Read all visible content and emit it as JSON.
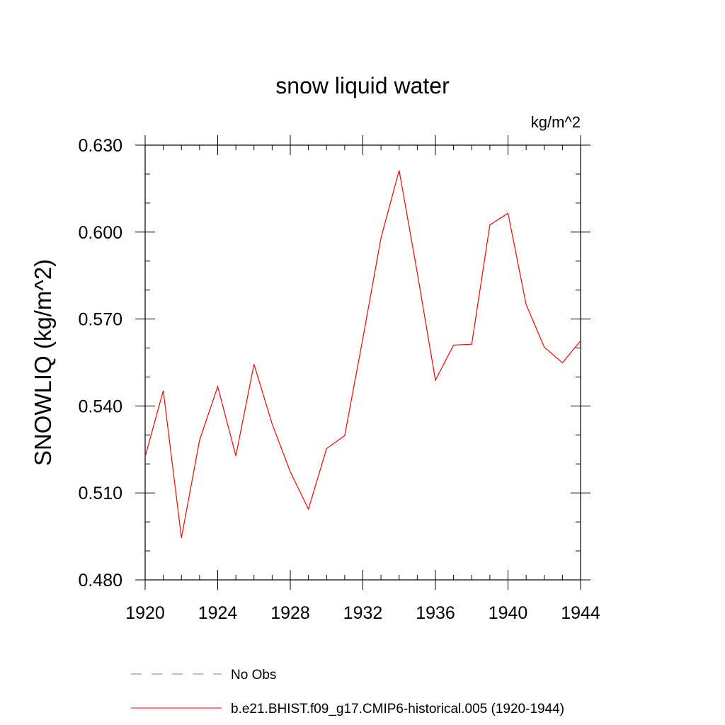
{
  "chart_data": {
    "type": "line",
    "title": "snow liquid water",
    "units_label": "kg/m^2",
    "xlabel": "",
    "ylabel": "SNOWLIQ  (kg/m^2)",
    "xlim": [
      1920,
      1944
    ],
    "ylim": [
      0.48,
      0.63
    ],
    "x_ticks": [
      "1920",
      "1924",
      "1928",
      "1932",
      "1936",
      "1940",
      "1944"
    ],
    "y_ticks": [
      "0.480",
      "0.510",
      "0.540",
      "0.570",
      "0.600",
      "0.630"
    ],
    "grid": false,
    "legend_position": "bottom",
    "series": [
      {
        "name": "No Obs",
        "color": "#7777cc",
        "style": "dashed",
        "x": [],
        "y": []
      },
      {
        "name": "b.e21.BHIST.f09_g17.CMIP6-historical.005 (1920-1944)",
        "color": "#ff0000",
        "style": "solid",
        "x": [
          1920,
          1921,
          1922,
          1923,
          1924,
          1925,
          1926,
          1927,
          1928,
          1929,
          1930,
          1931,
          1932,
          1933,
          1934,
          1935,
          1936,
          1937,
          1938,
          1939,
          1940,
          1941,
          1942,
          1943,
          1944
        ],
        "y": [
          0.5225,
          0.5453,
          0.4945,
          0.5282,
          0.5467,
          0.5228,
          0.5544,
          0.5338,
          0.5173,
          0.5044,
          0.5253,
          0.5298,
          0.5633,
          0.598,
          0.6213,
          0.5859,
          0.5489,
          0.561,
          0.5613,
          0.6025,
          0.6065,
          0.575,
          0.5603,
          0.5549,
          0.5625
        ]
      }
    ]
  }
}
